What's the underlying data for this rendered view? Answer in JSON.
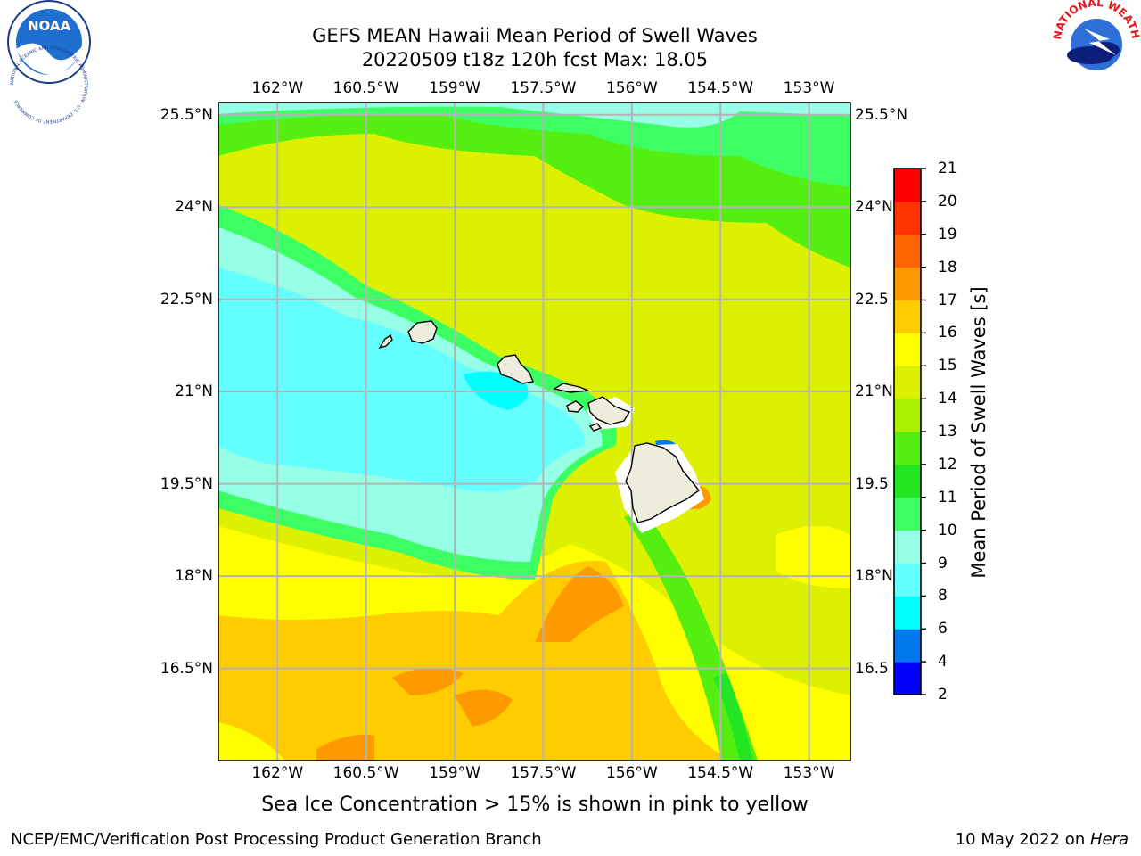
{
  "title": {
    "line1": "GEFS MEAN Hawaii Mean Period of Swell Waves",
    "line2": "20220509 t18z 120h fcst   Max: 18.05"
  },
  "map": {
    "lon_labels": [
      "162°W",
      "160.5°W",
      "159°W",
      "157.5°W",
      "156°W",
      "154.5°W",
      "153°W"
    ],
    "lon_values": [
      -162,
      -160.5,
      -159,
      -157.5,
      -156,
      -154.5,
      -153
    ],
    "lat_labels_left": [
      "25.5°N",
      "24°N",
      "22.5°N",
      "21°N",
      "19.5°N",
      "18°N",
      "16.5°N"
    ],
    "lat_labels_right": [
      "25.5°N",
      "24°N",
      "22.5",
      "21°N",
      "19.5",
      "18°N",
      "16.5"
    ],
    "lat_values": [
      25.5,
      24,
      22.5,
      21,
      19.5,
      18,
      16.5
    ],
    "lon_range": [
      -163,
      -152.3
    ],
    "lat_range": [
      15,
      25.7
    ],
    "grid": true,
    "land_color": "#eeecdc",
    "islands": [
      "Niihau",
      "Kauai",
      "Oahu",
      "Molokai",
      "Lanai",
      "Maui",
      "Kahoolawe",
      "Hawaii"
    ]
  },
  "colorbar": {
    "label": "Mean Period of Swell Waves [s]",
    "ticks": [
      "2",
      "4",
      "6",
      "8",
      "9",
      "10",
      "11",
      "12",
      "13",
      "14",
      "15",
      "16",
      "17",
      "18",
      "19",
      "20",
      "21"
    ],
    "colors": [
      "#0000ff",
      "#0078f0",
      "#00ffff",
      "#64ffff",
      "#96ffe6",
      "#3cff64",
      "#22e622",
      "#55ee11",
      "#aaee00",
      "#ddf000",
      "#ffff00",
      "#ffcc00",
      "#ff9900",
      "#ff6600",
      "#ff3300",
      "#ff0000"
    ]
  },
  "caption": "Sea Ice Concentration > 15% is shown in pink to yellow",
  "footer": {
    "left": "NCEP/EMC/Verification Post Processing Product Generation Branch",
    "right_date": "10 May 2022 on ",
    "right_machine": "Hera"
  },
  "logos": {
    "left": "NOAA",
    "left_ring": "NATIONAL OCEANIC AND ATMOSPHERIC ADMINISTRATION · U.S. DEPARTMENT OF COMMERCE",
    "right": "NATIONAL WEATHER SERVICE"
  }
}
